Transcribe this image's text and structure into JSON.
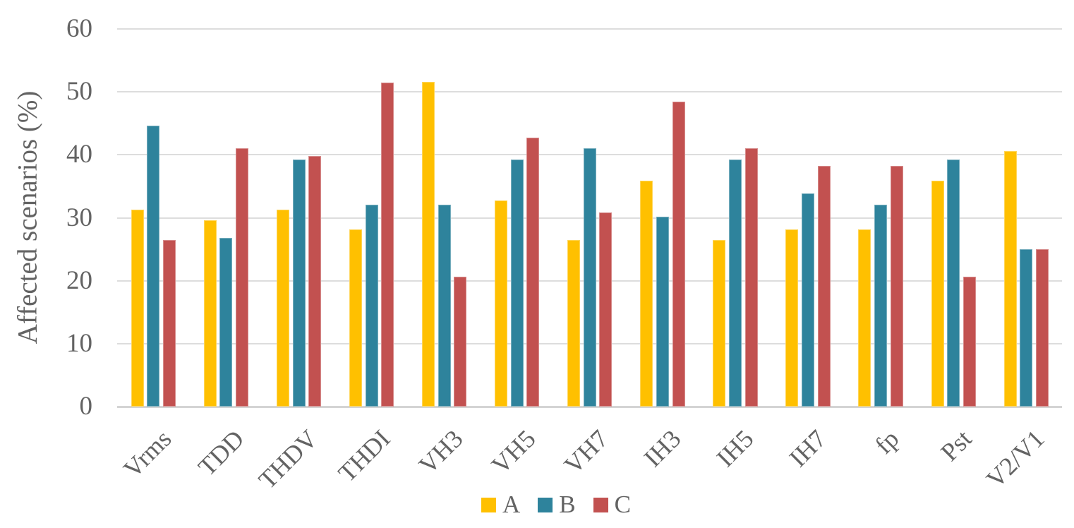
{
  "chart_data": {
    "type": "bar",
    "title": "",
    "xlabel": "",
    "ylabel": "Affected scenarios (%)",
    "ylim": [
      0,
      60
    ],
    "yticks": [
      0,
      10,
      20,
      30,
      40,
      50,
      60
    ],
    "grid": true,
    "legend_position": "bottom-center",
    "categories": [
      "Vrms",
      "TDD",
      "THDV",
      "THDI",
      "VH3",
      "VH5",
      "VH7",
      "IH3",
      "IH5",
      "IH7",
      "fp",
      "Pst",
      "V2/V1"
    ],
    "series": [
      {
        "name": "A",
        "color": "#FFC000",
        "values": [
          31.3,
          29.6,
          31.3,
          28.1,
          51.6,
          32.8,
          26.5,
          35.9,
          26.5,
          28.1,
          28.1,
          35.9,
          40.6
        ]
      },
      {
        "name": "B",
        "color": "#2E839C",
        "values": [
          44.6,
          26.8,
          39.3,
          32.1,
          32.1,
          39.3,
          41.1,
          30.2,
          39.3,
          33.9,
          32.1,
          39.3,
          25.0
        ]
      },
      {
        "name": "C",
        "color": "#C25150",
        "values": [
          26.5,
          41.1,
          39.8,
          51.5,
          20.6,
          42.7,
          30.9,
          48.5,
          41.1,
          38.2,
          38.2,
          20.6,
          25.0
        ]
      }
    ]
  },
  "colors": {
    "gridline": "#dddddd",
    "axis_line": "#d4d4d4",
    "text": "#636363",
    "background": "#ffffff"
  }
}
